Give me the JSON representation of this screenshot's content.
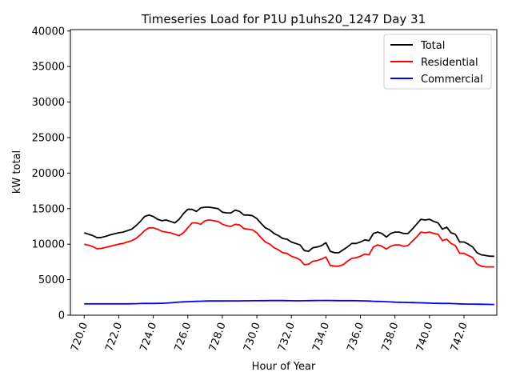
{
  "chart_data": {
    "type": "line",
    "title": "Timeseries Load for P1U p1uhs20_1247  Day 31",
    "xlabel": "Hour of Year",
    "ylabel": "kW total",
    "xlim": [
      719.2,
      743.9
    ],
    "ylim": [
      0,
      40200
    ],
    "x_ticks": [
      720,
      722,
      724,
      726,
      728,
      730,
      732,
      734,
      736,
      738,
      740,
      742
    ],
    "x_tick_labels": [
      "720.0",
      "722.0",
      "724.0",
      "726.0",
      "728.0",
      "730.0",
      "732.0",
      "734.0",
      "736.0",
      "738.0",
      "740.0",
      "742.0"
    ],
    "y_ticks": [
      0,
      5000,
      10000,
      15000,
      20000,
      25000,
      30000,
      35000,
      40000
    ],
    "y_tick_labels": [
      "0",
      "5000",
      "10000",
      "15000",
      "20000",
      "25000",
      "30000",
      "35000",
      "40000"
    ],
    "legend_position": "top-right",
    "x": [
      720.0,
      720.25,
      720.5,
      720.75,
      721.0,
      721.25,
      721.5,
      721.75,
      722.0,
      722.25,
      722.5,
      722.75,
      723.0,
      723.25,
      723.5,
      723.75,
      724.0,
      724.25,
      724.5,
      724.75,
      725.0,
      725.25,
      725.5,
      725.75,
      726.0,
      726.25,
      726.5,
      726.75,
      727.0,
      727.25,
      727.5,
      727.75,
      728.0,
      728.25,
      728.5,
      728.75,
      729.0,
      729.25,
      729.5,
      729.75,
      730.0,
      730.25,
      730.5,
      730.75,
      731.0,
      731.25,
      731.5,
      731.75,
      732.0,
      732.25,
      732.5,
      732.75,
      733.0,
      733.25,
      733.5,
      733.75,
      734.0,
      734.25,
      734.5,
      734.75,
      735.0,
      735.25,
      735.5,
      735.75,
      736.0,
      736.25,
      736.5,
      736.75,
      737.0,
      737.25,
      737.5,
      737.75,
      738.0,
      738.25,
      738.5,
      738.75,
      739.0,
      739.25,
      739.5,
      739.75,
      740.0,
      740.25,
      740.5,
      740.75,
      741.0,
      741.25,
      741.5,
      741.75,
      742.0,
      742.25,
      742.5,
      742.75,
      743.0,
      743.25,
      743.5,
      743.75
    ],
    "series": [
      {
        "name": "Total",
        "color": "#000000",
        "values": [
          11600,
          11400,
          11200,
          10900,
          10950,
          11100,
          11300,
          11450,
          11600,
          11700,
          11900,
          12100,
          12600,
          13200,
          13900,
          14100,
          13900,
          13500,
          13300,
          13400,
          13200,
          13000,
          13500,
          14300,
          14900,
          14900,
          14600,
          15100,
          15200,
          15200,
          15100,
          15000,
          14500,
          14400,
          14400,
          14800,
          14600,
          14100,
          14100,
          14000,
          13600,
          12900,
          12300,
          12000,
          11500,
          11200,
          10800,
          10700,
          10300,
          10100,
          9900,
          9100,
          9000,
          9500,
          9600,
          9800,
          10200,
          9000,
          8800,
          8800,
          9200,
          9600,
          10100,
          10100,
          10300,
          10600,
          10500,
          11500,
          11700,
          11500,
          11000,
          11500,
          11700,
          11700,
          11500,
          11500,
          12100,
          12800,
          13500,
          13400,
          13500,
          13200,
          13000,
          12100,
          12400,
          11600,
          11400,
          10300,
          10300,
          10000,
          9600,
          8800,
          8500,
          8400,
          8300,
          8300
        ]
      },
      {
        "name": "Residential",
        "color": "#ff0000",
        "values": [
          10000,
          9850,
          9650,
          9350,
          9400,
          9550,
          9700,
          9850,
          10000,
          10100,
          10300,
          10500,
          10800,
          11300,
          11900,
          12300,
          12300,
          12100,
          11800,
          11700,
          11600,
          11400,
          11200,
          11600,
          12300,
          13000,
          13000,
          12800,
          13300,
          13400,
          13300,
          13200,
          12800,
          12600,
          12500,
          12800,
          12700,
          12200,
          12100,
          12000,
          11600,
          10900,
          10300,
          10000,
          9500,
          9200,
          8800,
          8700,
          8300,
          8100,
          7800,
          7100,
          7200,
          7600,
          7700,
          7900,
          8200,
          7000,
          6900,
          6900,
          7100,
          7600,
          8000,
          8100,
          8300,
          8600,
          8500,
          9600,
          9900,
          9700,
          9300,
          9700,
          9900,
          9900,
          9700,
          9800,
          10400,
          11000,
          11700,
          11600,
          11700,
          11500,
          11400,
          10500,
          10700,
          10100,
          9800,
          8700,
          8700,
          8400,
          8100,
          7200,
          6900,
          6800,
          6800,
          6800
        ]
      },
      {
        "name": "Commercial",
        "color": "#0000ff",
        "values": [
          1600,
          1600,
          1600,
          1600,
          1600,
          1600,
          1600,
          1600,
          1600,
          1600,
          1600,
          1610,
          1620,
          1640,
          1650,
          1660,
          1660,
          1670,
          1680,
          1700,
          1750,
          1800,
          1850,
          1880,
          1900,
          1920,
          1950,
          1970,
          1990,
          2000,
          2000,
          2000,
          2000,
          2010,
          2010,
          2020,
          2020,
          2030,
          2030,
          2040,
          2040,
          2050,
          2050,
          2060,
          2060,
          2060,
          2060,
          2050,
          2040,
          2030,
          2030,
          2040,
          2050,
          2060,
          2070,
          2070,
          2080,
          2070,
          2060,
          2050,
          2050,
          2050,
          2050,
          2040,
          2030,
          2010,
          1990,
          1960,
          1940,
          1920,
          1900,
          1870,
          1840,
          1820,
          1800,
          1790,
          1780,
          1760,
          1740,
          1720,
          1700,
          1680,
          1670,
          1660,
          1650,
          1640,
          1620,
          1600,
          1580,
          1570,
          1560,
          1550,
          1540,
          1530,
          1520,
          1510
        ]
      }
    ]
  }
}
